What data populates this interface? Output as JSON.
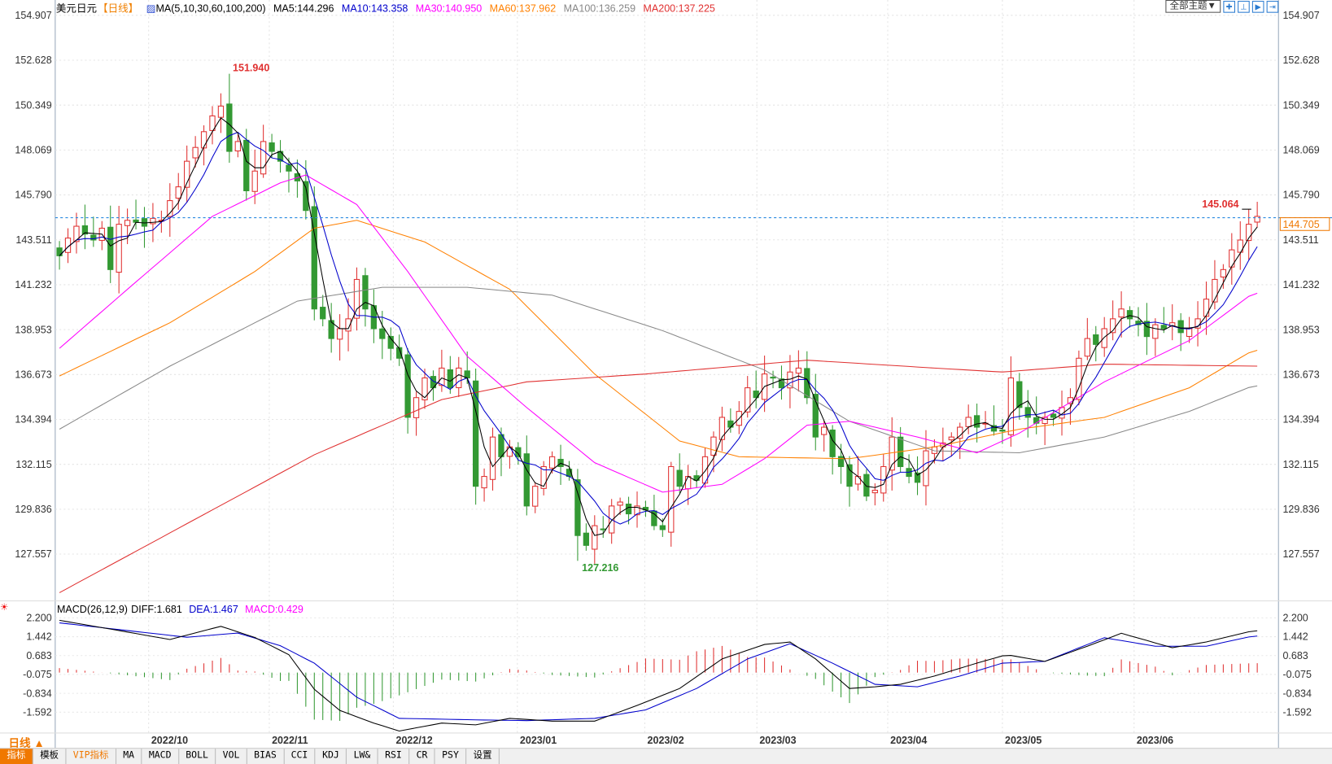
{
  "header": {
    "symbol": "美元日元",
    "period": "【日线】",
    "ma_label": "MA(5,10,30,60,100,200)",
    "ma_values": [
      {
        "text": "MA5:144.296",
        "color": "#000000"
      },
      {
        "text": "MA10:143.358",
        "color": "#0000cc"
      },
      {
        "text": "MA30:140.950",
        "color": "#ff00ff"
      },
      {
        "text": "MA60:137.962",
        "color": "#ff8000"
      },
      {
        "text": "MA100:136.259",
        "color": "#888888"
      },
      {
        "text": "MA200:137.225",
        "color": "#e03030"
      }
    ],
    "theme_button": "全部主题▼",
    "tool_icons": [
      "crosshair-icon",
      "zoom-range-icon",
      "play-icon",
      "scroll-end-icon"
    ]
  },
  "macd_header": {
    "label": "MACD(26,12,9)",
    "diff": "DIFF:1.681",
    "dea": "DEA:1.467",
    "macd": "MACD:0.429"
  },
  "chart_data": {
    "type": "candlestick",
    "price_axis": {
      "ticks": [
        "154.907",
        "152.628",
        "150.349",
        "148.069",
        "145.790",
        "143.511",
        "141.232",
        "138.953",
        "136.673",
        "134.394",
        "132.115",
        "129.836",
        "127.557"
      ],
      "ylim": [
        127.557,
        154.907
      ]
    },
    "macd_axis": {
      "ticks": [
        "2.200",
        "1.442",
        "0.683",
        "-0.075",
        "-0.834",
        "-1.592"
      ],
      "ylim": [
        -1.592,
        2.2
      ]
    },
    "months": [
      {
        "label": "2022/10",
        "index": 10.8
      },
      {
        "label": "2022/11",
        "index": 25
      },
      {
        "label": "2022/12",
        "index": 39.6
      },
      {
        "label": "2023/01",
        "index": 54.2
      },
      {
        "label": "2023/02",
        "index": 69.2
      },
      {
        "label": "2023/03",
        "index": 82.4
      },
      {
        "label": "2023/04",
        "index": 97.8
      },
      {
        "label": "2023/05",
        "index": 111.3
      },
      {
        "label": "2023/06",
        "index": 126.8
      }
    ],
    "closes": [
      142.7,
      143.6,
      144.2,
      143.8,
      143.5,
      144.1,
      142.0,
      144.3,
      144.5,
      144.4,
      144.2,
      144.6,
      144.5,
      145.5,
      146.2,
      147.5,
      148.2,
      149.0,
      149.8,
      150.3,
      148.0,
      148.5,
      146.0,
      147.0,
      148.5,
      148.0,
      147.5,
      147.0,
      146.5,
      145.0,
      140.0,
      139.5,
      138.5,
      139.0,
      139.5,
      141.5,
      140.0,
      139.0,
      138.5,
      138.0,
      137.5,
      134.5,
      135.5,
      136.5,
      136.0,
      137.0,
      136.0,
      137.0,
      136.5,
      131.0,
      131.5,
      133.5,
      132.5,
      133.0,
      132.5,
      130.0,
      131.0,
      132.0,
      132.5,
      132.0,
      131.5,
      128.5,
      128.0,
      129.0,
      128.8,
      130.0,
      130.2,
      129.6,
      130.0,
      129.8,
      129.0,
      128.8,
      132.0,
      131.0,
      131.5,
      131.3,
      132.5,
      133.5,
      134.5,
      134.0,
      134.8,
      136.0,
      135.5,
      136.7,
      136.5,
      136.0,
      136.8,
      137.0,
      135.5,
      133.5,
      134.0,
      132.5,
      132.0,
      131.0,
      131.5,
      130.5,
      130.8,
      132.0,
      133.5,
      132.0,
      131.5,
      131.2,
      132.8,
      133.0,
      133.2,
      133.5,
      134.0,
      134.5,
      134.0,
      134.2,
      133.8,
      133.8,
      136.5,
      135.0,
      134.5,
      134.2,
      134.5,
      134.5,
      135.0,
      135.5,
      137.5,
      138.5,
      138.2,
      139.0,
      139.5,
      140.0,
      139.5,
      139.2,
      138.6,
      139.2,
      139.0,
      139.3,
      138.8,
      139.0,
      139.5,
      140.5,
      141.5,
      142.0,
      143.0,
      143.5,
      144.3,
      144.7
    ],
    "annotations": {
      "high": {
        "label": "151.940",
        "index": 20,
        "value": 151.94
      },
      "low": {
        "label": "127.216",
        "index": 61,
        "value": 127.216
      },
      "recent_high": {
        "label": "145.064",
        "index": 140,
        "value": 145.064
      },
      "last_price": {
        "label": "144.705",
        "value": 144.705
      }
    },
    "series": [
      {
        "name": "MA60",
        "color": "#ff8000",
        "points": [
          [
            0,
            136.6
          ],
          [
            13,
            139.3
          ],
          [
            23,
            141.9
          ],
          [
            30,
            144.1
          ],
          [
            35,
            144.5
          ],
          [
            43,
            143.4
          ],
          [
            53,
            141.0
          ],
          [
            63,
            136.7
          ],
          [
            73,
            133.3
          ],
          [
            80,
            132.5
          ],
          [
            93,
            132.4
          ],
          [
            103,
            133.0
          ],
          [
            113,
            133.9
          ],
          [
            123,
            134.5
          ],
          [
            133,
            136.0
          ],
          [
            140.5,
            137.9
          ]
        ]
      },
      {
        "name": "MA100",
        "color": "#888888",
        "points": [
          [
            0,
            133.9
          ],
          [
            13,
            137.1
          ],
          [
            28,
            140.4
          ],
          [
            38,
            141.1
          ],
          [
            48,
            141.1
          ],
          [
            58,
            140.7
          ],
          [
            71,
            138.9
          ],
          [
            83,
            136.9
          ],
          [
            93,
            134.3
          ],
          [
            103,
            132.8
          ],
          [
            113,
            132.7
          ],
          [
            123,
            133.5
          ],
          [
            133,
            134.8
          ],
          [
            140.5,
            136.1
          ]
        ]
      },
      {
        "name": "MA200",
        "color": "#e03030",
        "points": [
          [
            0,
            125.6
          ],
          [
            30,
            132.6
          ],
          [
            45,
            135.4
          ],
          [
            55,
            136.3
          ],
          [
            69,
            136.7
          ],
          [
            88,
            137.4
          ],
          [
            103,
            137.0
          ],
          [
            111,
            136.8
          ],
          [
            123,
            137.2
          ],
          [
            140.5,
            137.1
          ]
        ]
      },
      {
        "name": "MA30",
        "color": "#ff00ff",
        "points": [
          [
            0,
            138.0
          ],
          [
            8,
            141.0
          ],
          [
            18,
            144.7
          ],
          [
            26,
            146.4
          ],
          [
            29,
            146.8
          ],
          [
            35,
            145.3
          ],
          [
            41,
            141.9
          ],
          [
            48,
            137.6
          ],
          [
            55,
            135.0
          ],
          [
            63,
            132.2
          ],
          [
            71,
            130.7
          ],
          [
            78,
            131.1
          ],
          [
            83,
            132.4
          ],
          [
            88,
            134.1
          ],
          [
            93,
            134.3
          ],
          [
            101,
            133.5
          ],
          [
            108,
            132.7
          ],
          [
            113,
            133.7
          ],
          [
            123,
            136.3
          ],
          [
            133,
            138.4
          ],
          [
            140.5,
            140.8
          ]
        ]
      }
    ],
    "macd": {
      "diff": [
        [
          0,
          2.1
        ],
        [
          6,
          1.75
        ],
        [
          13,
          1.33
        ],
        [
          19,
          1.86
        ],
        [
          23,
          1.41
        ],
        [
          27,
          0.72
        ],
        [
          30,
          -0.67
        ],
        [
          33,
          -1.52
        ],
        [
          37,
          -2.03
        ],
        [
          40,
          -2.35
        ],
        [
          45,
          -2.03
        ],
        [
          49,
          -2.1
        ],
        [
          53,
          -1.84
        ],
        [
          58,
          -1.95
        ],
        [
          63,
          -1.95
        ],
        [
          68,
          -1.32
        ],
        [
          73,
          -0.64
        ],
        [
          78,
          0.55
        ],
        [
          83,
          1.13
        ],
        [
          86,
          1.23
        ],
        [
          89,
          0.55
        ],
        [
          93,
          -0.64
        ],
        [
          96,
          -0.57
        ],
        [
          99,
          -0.47
        ],
        [
          103,
          -0.14
        ],
        [
          108,
          0.38
        ],
        [
          111.5,
          0.72
        ],
        [
          116,
          0.45
        ],
        [
          121,
          1.06
        ],
        [
          125,
          1.58
        ],
        [
          131,
          1.0
        ],
        [
          135,
          1.23
        ],
        [
          140.5,
          1.68
        ]
      ],
      "dea": [
        [
          0,
          2.0
        ],
        [
          8,
          1.69
        ],
        [
          15,
          1.42
        ],
        [
          21,
          1.59
        ],
        [
          26,
          1.08
        ],
        [
          30,
          0.38
        ],
        [
          35,
          -0.99
        ],
        [
          40,
          -1.84
        ],
        [
          49,
          -1.9
        ],
        [
          55,
          -1.93
        ],
        [
          63,
          -1.84
        ],
        [
          69,
          -1.5
        ],
        [
          75,
          -0.64
        ],
        [
          81,
          0.55
        ],
        [
          86,
          1.16
        ],
        [
          91,
          0.38
        ],
        [
          96,
          -0.47
        ],
        [
          101,
          -0.57
        ],
        [
          106,
          -0.14
        ],
        [
          111,
          0.38
        ],
        [
          116,
          0.45
        ],
        [
          123,
          1.4
        ],
        [
          129,
          1.06
        ],
        [
          135,
          1.06
        ],
        [
          140.5,
          1.47
        ]
      ]
    }
  },
  "date_bar": {
    "period_button": "日线 ▲"
  },
  "tabs": [
    "指标",
    "模板",
    "VIP指标",
    "MA",
    "MACD",
    "BOLL",
    "VOL",
    "BIAS",
    "CCI",
    "KDJ",
    "LW&",
    "RSI",
    "CR",
    "PSY",
    "设置"
  ]
}
